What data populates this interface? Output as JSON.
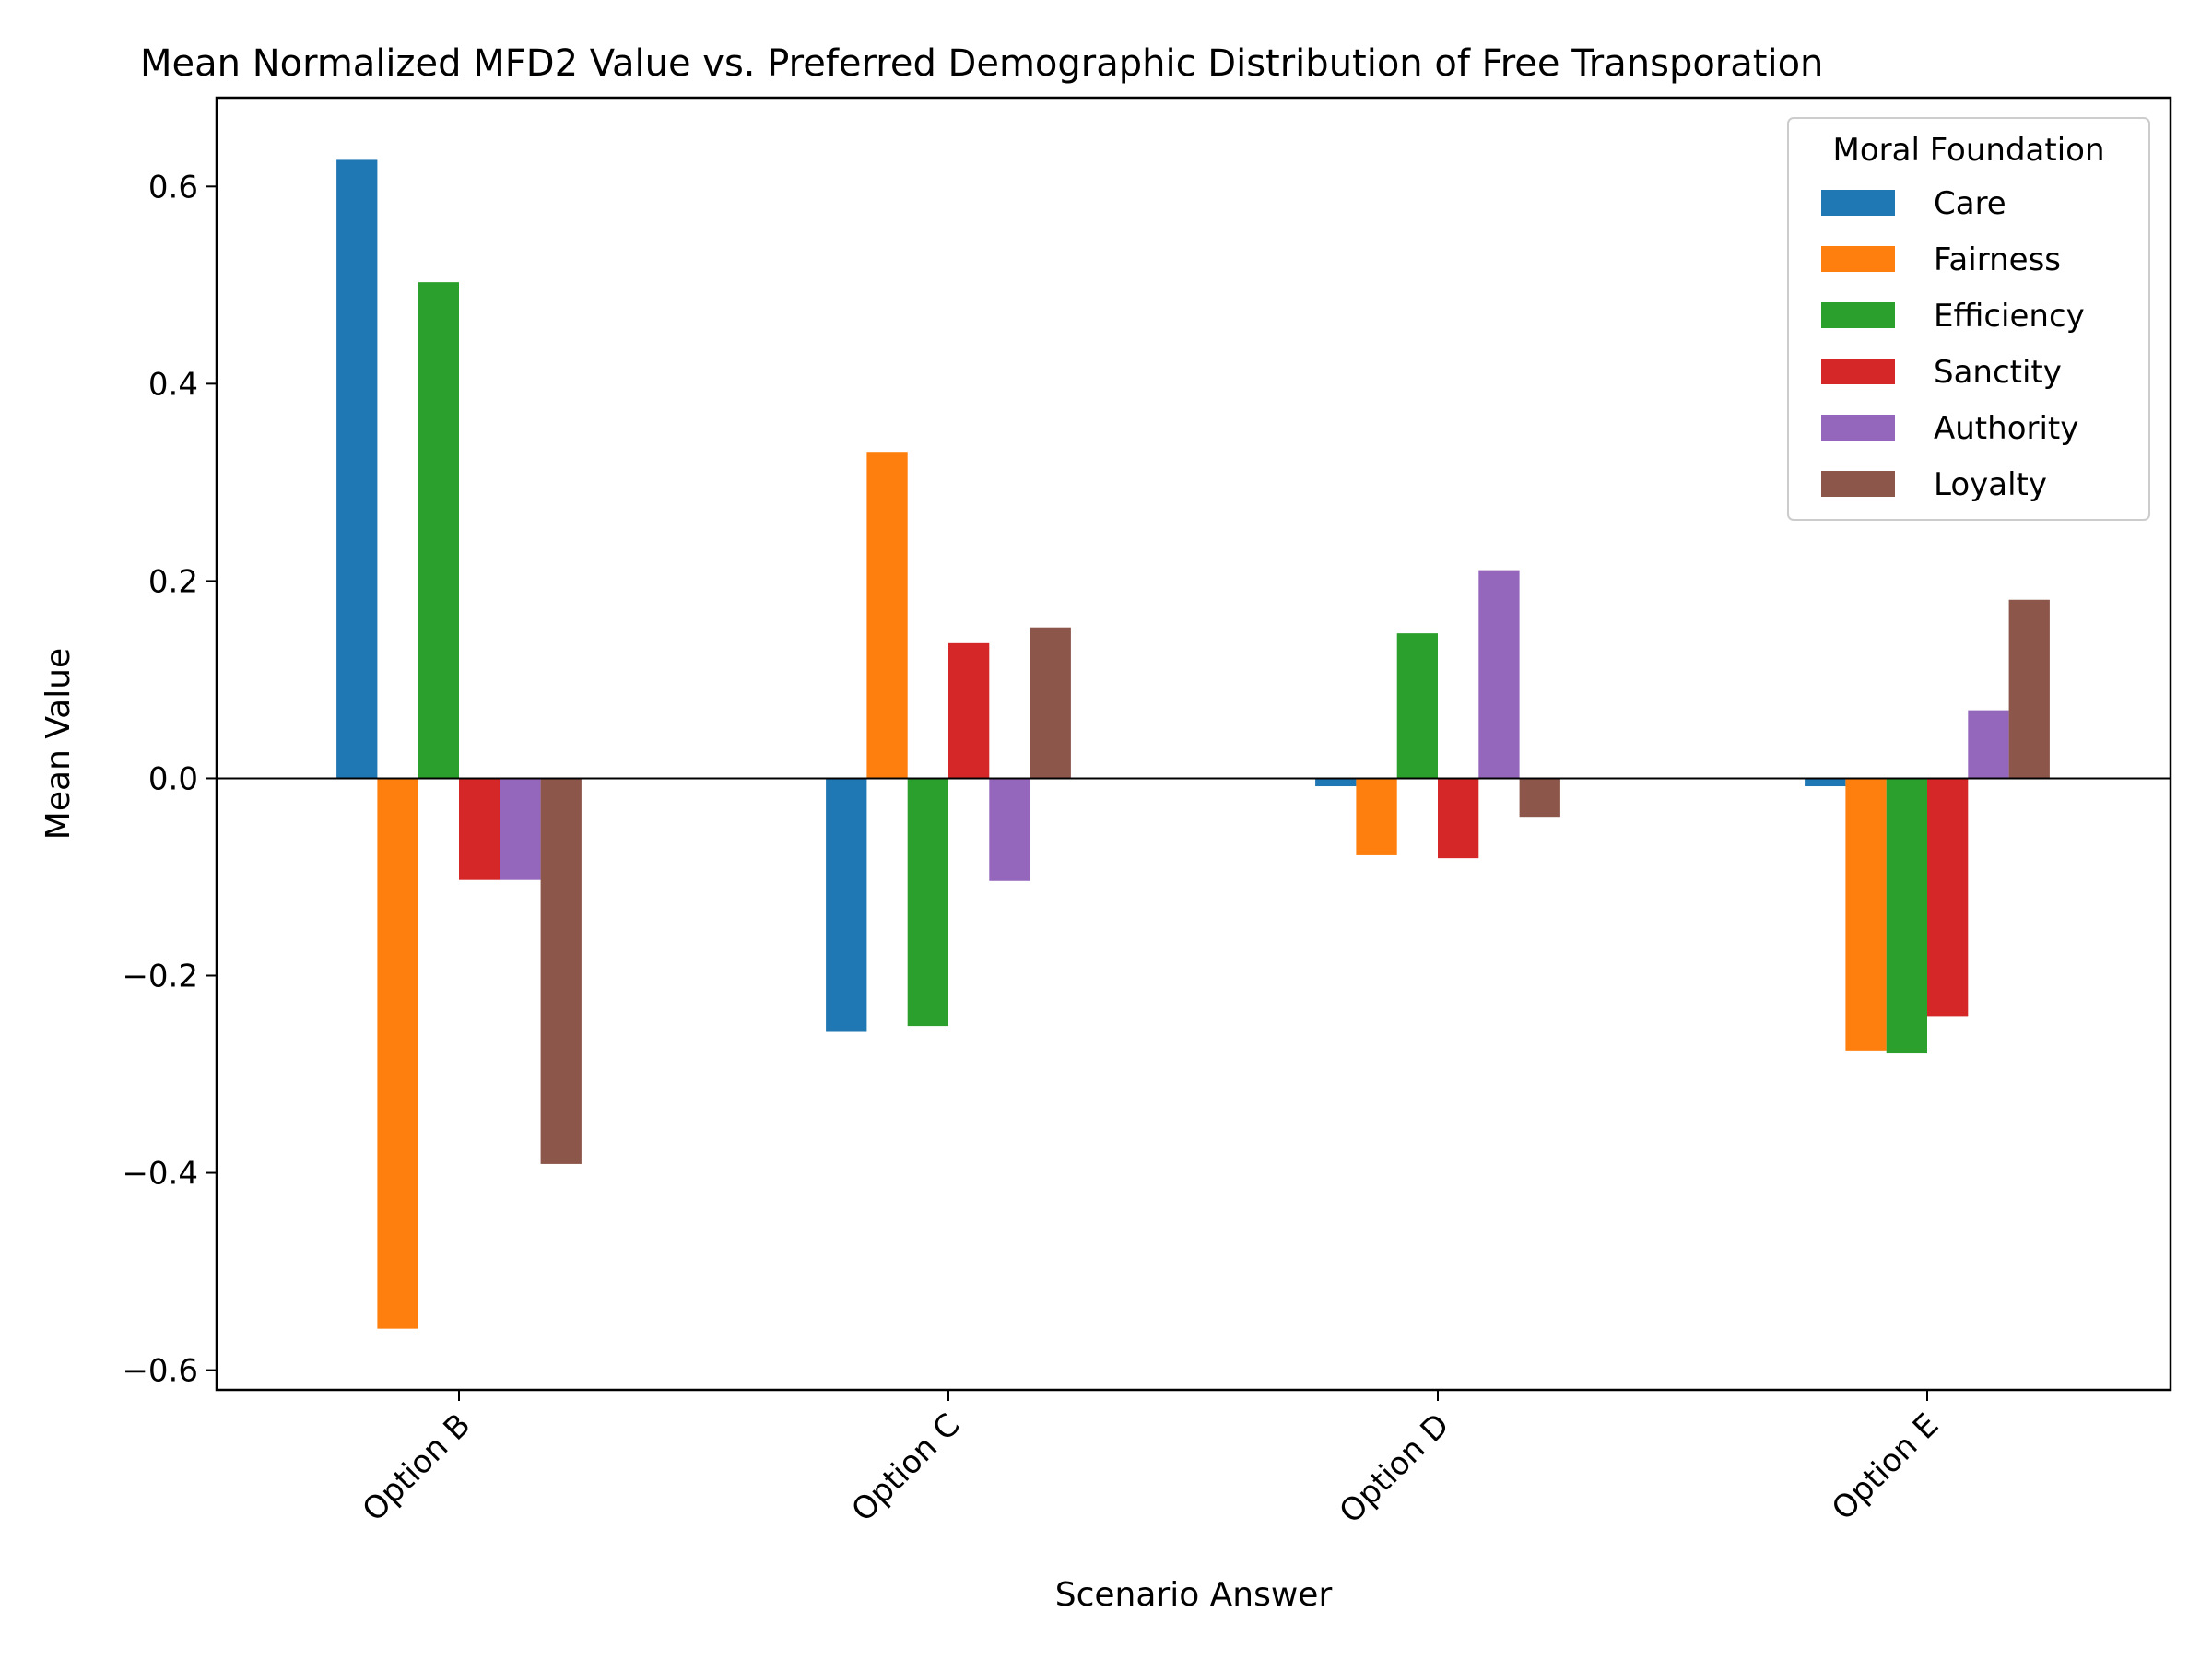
{
  "chart_data": {
    "type": "bar",
    "title": "Mean Normalized MFD2 Value vs. Preferred Demographic Distribution of Free Transporation",
    "xlabel": "Scenario Answer",
    "ylabel": "Mean Value",
    "categories": [
      "Option B",
      "Option C",
      "Option D",
      "Option E"
    ],
    "ylim": [
      -0.62,
      0.69
    ],
    "yticks": [
      -0.6,
      -0.4,
      -0.2,
      0.0,
      0.2,
      0.4,
      0.6
    ],
    "ytick_labels": [
      "−0.6",
      "−0.4",
      "−0.2",
      "0.0",
      "0.2",
      "0.4",
      "0.6"
    ],
    "legend": {
      "title": "Moral Foundation",
      "placement": "top-right"
    },
    "grid": false,
    "zero_line": true,
    "series": [
      {
        "name": "Care",
        "color": "#1f77b4",
        "values": [
          0.627,
          -0.257,
          -0.008,
          -0.008
        ]
      },
      {
        "name": "Fairness",
        "color": "#ff7f0e",
        "values": [
          -0.558,
          0.331,
          -0.078,
          -0.276
        ]
      },
      {
        "name": "Efficiency",
        "color": "#2ca02c",
        "values": [
          0.503,
          -0.251,
          0.147,
          -0.279
        ]
      },
      {
        "name": "Sanctity",
        "color": "#d62728",
        "values": [
          -0.103,
          0.137,
          -0.081,
          -0.241
        ]
      },
      {
        "name": "Authority",
        "color": "#9467bd",
        "values": [
          -0.103,
          -0.104,
          0.211,
          0.069
        ]
      },
      {
        "name": "Loyalty",
        "color": "#8c564b",
        "values": [
          -0.391,
          0.153,
          -0.039,
          0.181
        ]
      }
    ]
  }
}
